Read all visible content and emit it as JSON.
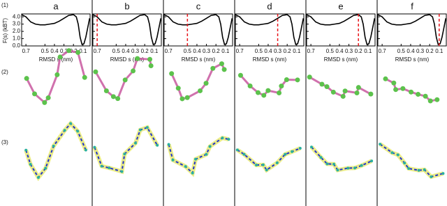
{
  "row_labels": [
    "(1)",
    "(2)",
    "(3)"
  ],
  "chart_data": {
    "type": "line",
    "panels": [
      "a",
      "b",
      "c",
      "d",
      "e",
      "f"
    ],
    "ylabel": "F(s) (kBT)",
    "xlabel": "RMSD s (nm)",
    "x": [
      0.745,
      0.7,
      0.65,
      0.6,
      0.55,
      0.5,
      0.45,
      0.4,
      0.35,
      0.3,
      0.25,
      0.2,
      0.17,
      0.15,
      0.13,
      0.11,
      0.09,
      0.07,
      0.05,
      0.03
    ],
    "values": [
      4.3,
      4.0,
      3.3,
      3.0,
      2.9,
      2.9,
      3.0,
      3.1,
      3.4,
      3.8,
      4.2,
      4.3,
      4.0,
      3.0,
      1.2,
      0.2,
      0.3,
      1.2,
      2.5,
      3.8
    ],
    "color": "#000000",
    "markers": [
      null,
      0.7,
      0.5,
      0.3,
      0.2,
      0.1
    ],
    "marker_color": "#e8161b",
    "xlim": [
      0.745,
      0.025
    ],
    "ylim": [
      0,
      4.4
    ],
    "xticks": [
      0.7,
      0.5,
      0.4,
      0.3,
      0.2,
      0.1
    ],
    "yticks": [
      {
        "value": 0,
        "label": "0.0"
      },
      {
        "value": 1,
        "label": "1.0"
      },
      {
        "value": 2,
        "label": "2.0"
      },
      {
        "value": 3,
        "label": "3.0"
      },
      {
        "value": 4,
        "label": "4.0"
      }
    ]
  }
}
